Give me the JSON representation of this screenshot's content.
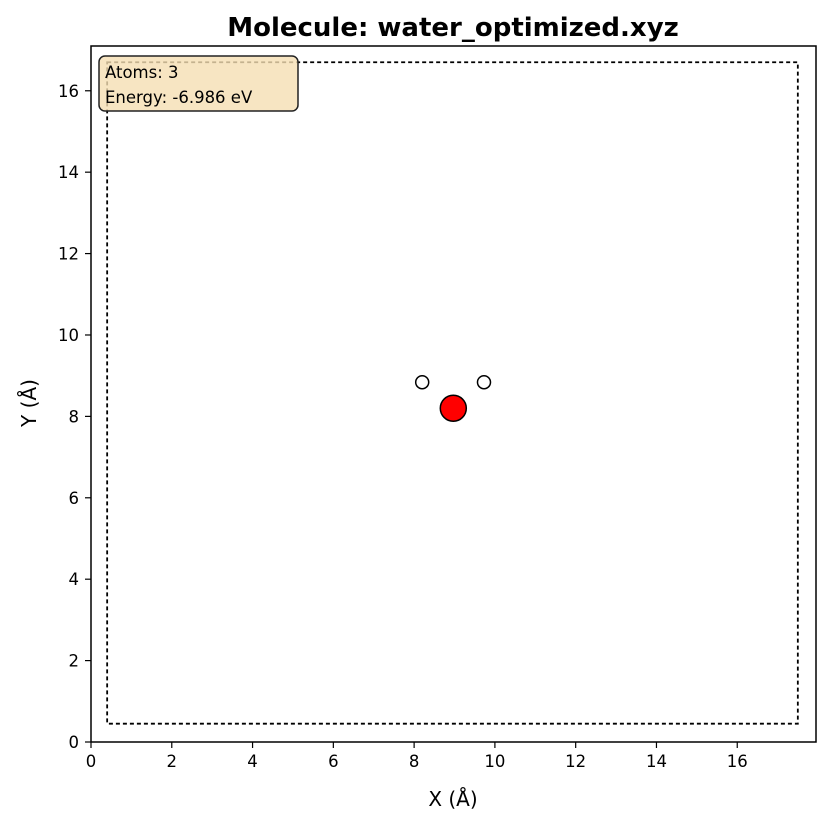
{
  "chart_data": {
    "type": "scatter",
    "title": "Molecule: water_optimized.xyz",
    "xlabel": "X (Å)",
    "ylabel": "Y (Å)",
    "xlim": [
      0,
      17.95
    ],
    "ylim": [
      0,
      17.1
    ],
    "xticks": [
      0,
      2,
      4,
      6,
      8,
      10,
      12,
      14,
      16
    ],
    "yticks": [
      0,
      2,
      4,
      6,
      8,
      10,
      12,
      14,
      16
    ],
    "grid": false,
    "cell_box": {
      "x": [
        0.4,
        17.5
      ],
      "y": [
        0.45,
        16.7
      ],
      "style": "dashed",
      "color": "#000000"
    },
    "atoms": [
      {
        "element": "O",
        "x": 8.97,
        "y": 8.2,
        "color": "#ff0000",
        "radius": "large"
      },
      {
        "element": "H",
        "x": 8.2,
        "y": 8.84,
        "color": "#ffffff",
        "radius": "small"
      },
      {
        "element": "H",
        "x": 9.73,
        "y": 8.84,
        "color": "#ffffff",
        "radius": "small"
      }
    ],
    "info_box": {
      "lines": [
        "Atoms: 3",
        "Energy: -6.986 eV"
      ],
      "placement": "top-left",
      "facecolor": "#f5deb3"
    }
  }
}
